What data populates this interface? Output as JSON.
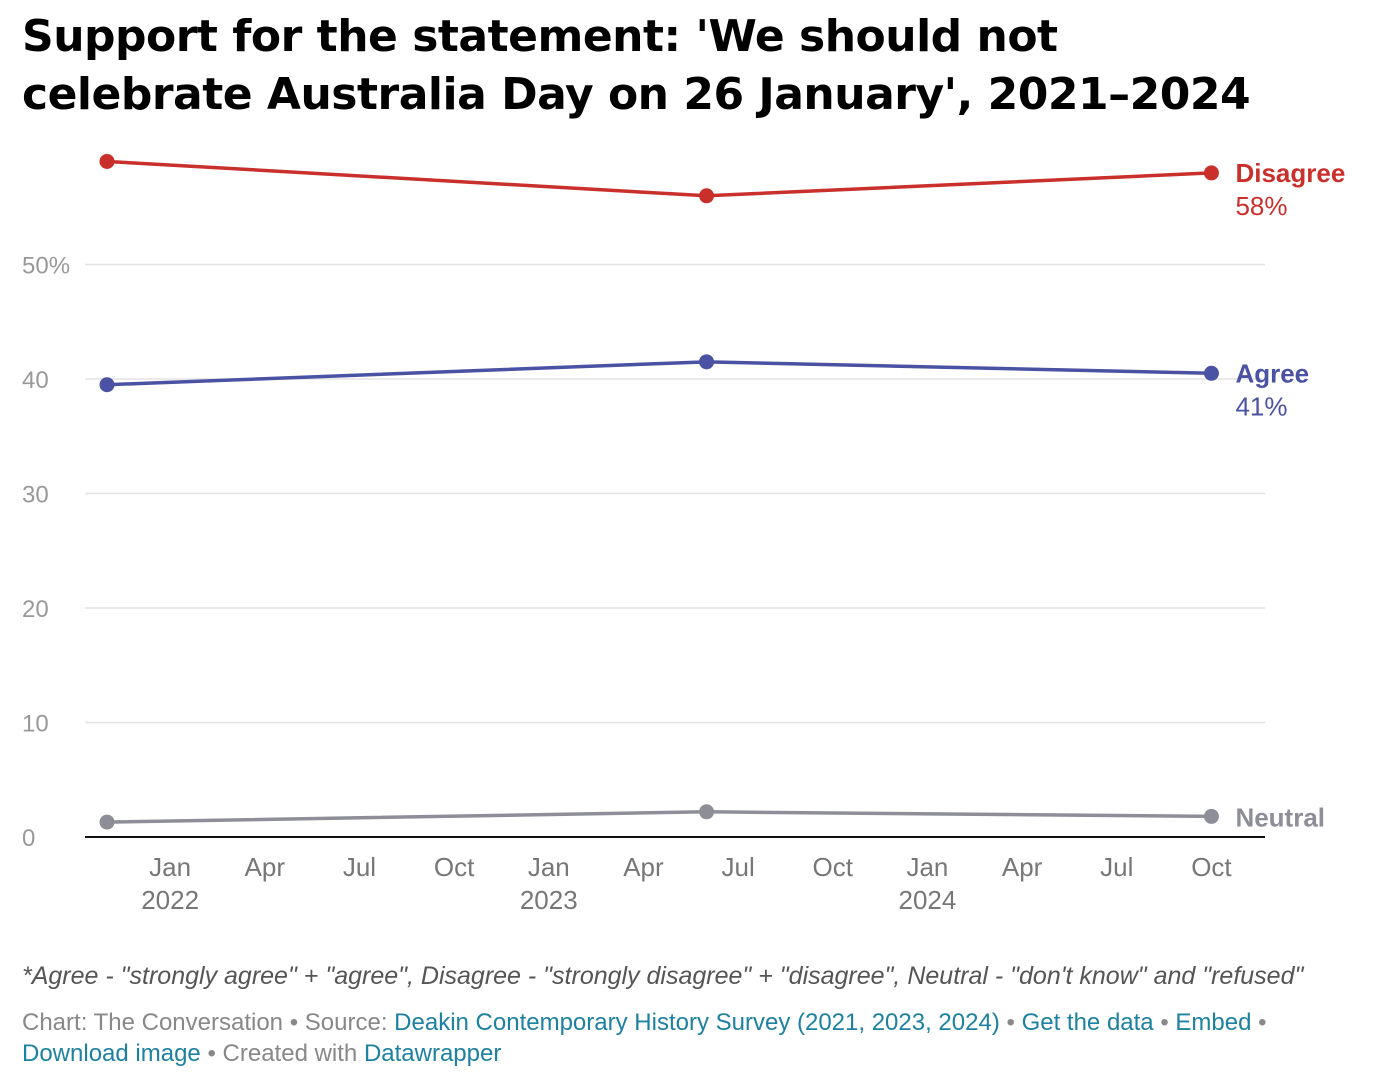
{
  "title": "Support for the statement: 'We should not celebrate Australia Day on 26 January', 2021–2024",
  "chart_data": {
    "type": "line",
    "x": [
      "2021-11",
      "2023-06",
      "2024-10"
    ],
    "series": [
      {
        "name": "Disagree",
        "values": [
          59,
          56,
          58
        ],
        "end_label": "58%",
        "color": "#c9302c"
      },
      {
        "name": "Agree",
        "values": [
          39.5,
          41.5,
          40.5
        ],
        "end_label": "41%",
        "color": "#4a52a3"
      },
      {
        "name": "Neutral",
        "values": [
          1.3,
          2.2,
          1.8
        ],
        "end_label": "",
        "color": "#8e8e99"
      }
    ],
    "ylim": [
      0,
      60
    ],
    "y_ticks": [
      {
        "value": 0,
        "label": "0"
      },
      {
        "value": 10,
        "label": "10"
      },
      {
        "value": 20,
        "label": "20"
      },
      {
        "value": 30,
        "label": "30"
      },
      {
        "value": 40,
        "label": "40"
      },
      {
        "value": 50,
        "label": "50%"
      }
    ],
    "xlim": [
      "2021-11",
      "2024-11"
    ],
    "x_ticks": [
      {
        "date": "2022-01",
        "label": "Jan",
        "year": "2022"
      },
      {
        "date": "2022-04",
        "label": "Apr",
        "year": ""
      },
      {
        "date": "2022-07",
        "label": "Jul",
        "year": ""
      },
      {
        "date": "2022-10",
        "label": "Oct",
        "year": ""
      },
      {
        "date": "2023-01",
        "label": "Jan",
        "year": "2023"
      },
      {
        "date": "2023-04",
        "label": "Apr",
        "year": ""
      },
      {
        "date": "2023-07",
        "label": "Jul",
        "year": ""
      },
      {
        "date": "2023-10",
        "label": "Oct",
        "year": ""
      },
      {
        "date": "2024-01",
        "label": "Jan",
        "year": "2024"
      },
      {
        "date": "2024-04",
        "label": "Apr",
        "year": ""
      },
      {
        "date": "2024-07",
        "label": "Jul",
        "year": ""
      },
      {
        "date": "2024-10",
        "label": "Oct",
        "year": ""
      }
    ],
    "grid": true,
    "legend": "direct labels at right"
  },
  "note": "*Agree - \"strongly agree\" + \"agree\", Disagree - \"strongly disagree\" + \"disagree\", Neutral - \"don't know\" and \"refused\"",
  "footer": {
    "chart_prefix": "Chart: The Conversation",
    "source_prefix": "Source:",
    "source_link": "Deakin Contemporary History Survey (2021, 2023, 2024)",
    "get_data": "Get the data",
    "embed": "Embed",
    "download": "Download image",
    "created_prefix": "Created with",
    "datawrapper": "Datawrapper",
    "separator": "•"
  }
}
